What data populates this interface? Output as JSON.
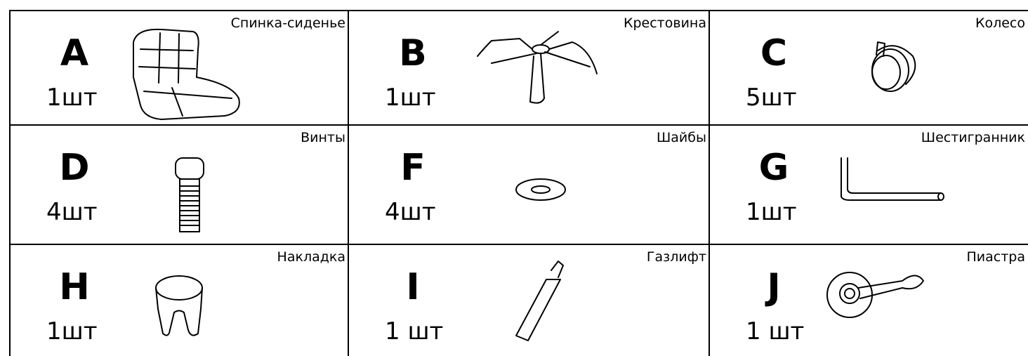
{
  "parts": [
    {
      "letter": "A",
      "count": "1шт",
      "name": "Спинка-сиденье"
    },
    {
      "letter": "B",
      "count": "1шт",
      "name": "Крестовина"
    },
    {
      "letter": "C",
      "count": "5шт",
      "name": "Колесо"
    },
    {
      "letter": "D",
      "count": "4шт",
      "name": "Винты"
    },
    {
      "letter": "F",
      "count": "4шт",
      "name": "Шайбы"
    },
    {
      "letter": "G",
      "count": "1шт",
      "name": "Шестигранник"
    },
    {
      "letter": "H",
      "count": "1шт",
      "name": "Накладка"
    },
    {
      "letter": "I",
      "count": "1 шт",
      "name": "Газлифт"
    },
    {
      "letter": "J",
      "count": "1 шт",
      "name": "Пиастра"
    }
  ]
}
